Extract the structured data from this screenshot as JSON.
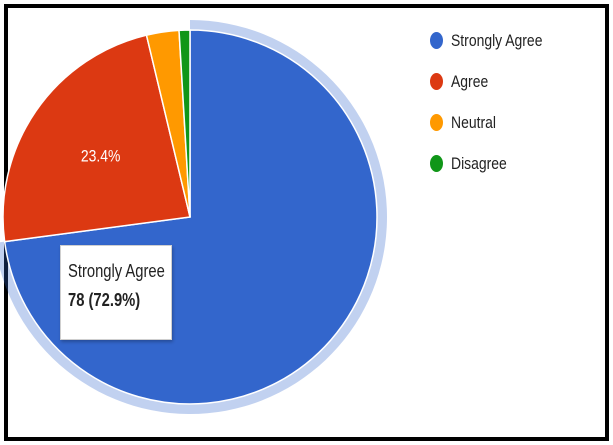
{
  "chart_data": {
    "type": "pie",
    "categories": [
      "Strongly Agree",
      "Agree",
      "Neutral",
      "Disagree"
    ],
    "values": [
      78,
      25,
      3,
      1
    ],
    "colors": [
      "#3366cc",
      "#dc3912",
      "#ff9900",
      "#109618"
    ],
    "slice_labels": [
      "",
      "23.4%",
      "",
      ""
    ],
    "highlighted": "Strongly Agree",
    "legend_position": "right",
    "tooltip": {
      "name": "Strongly Agree",
      "value": "78 (72.9%)"
    }
  }
}
